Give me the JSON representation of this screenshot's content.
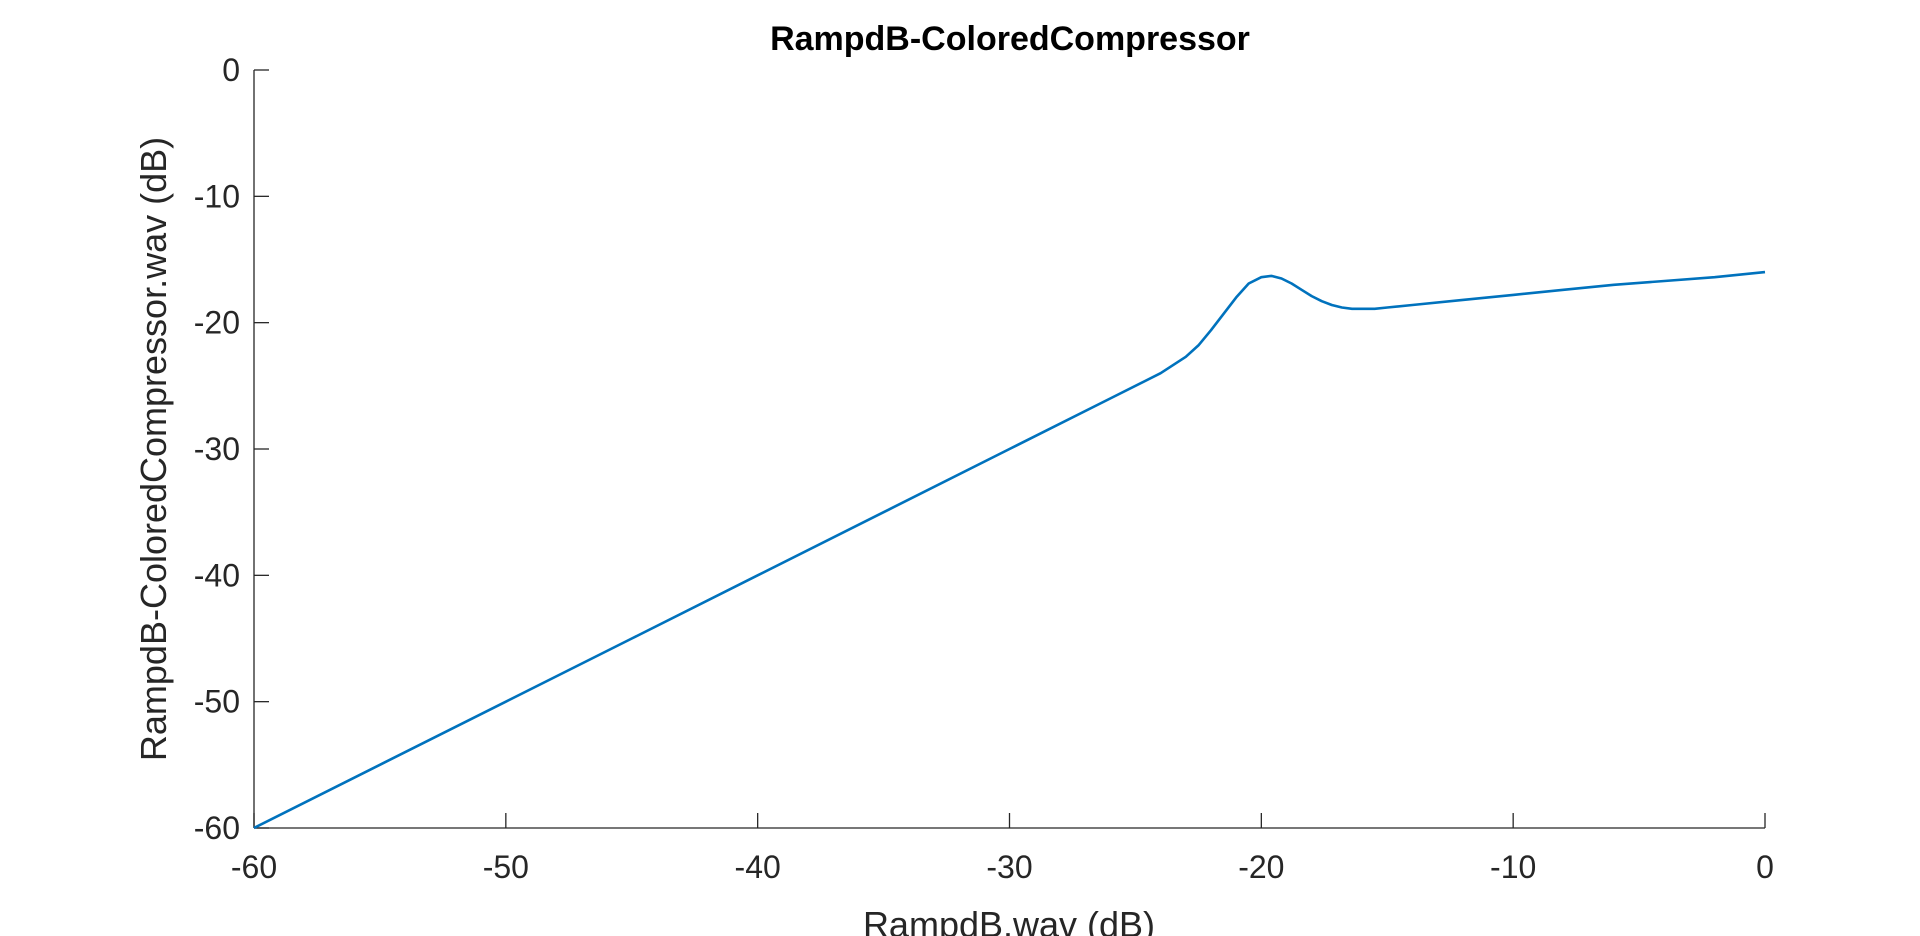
{
  "chart_data": {
    "type": "line",
    "title": "RampdB-ColoredCompressor",
    "xlabel": "RampdB.wav (dB)",
    "ylabel": "RampdB-ColoredCompressor.wav (dB)",
    "xlim": [
      -60,
      0
    ],
    "ylim": [
      -60,
      0
    ],
    "xticks": [
      -60,
      -50,
      -40,
      -30,
      -20,
      -10,
      0
    ],
    "yticks": [
      -60,
      -50,
      -40,
      -30,
      -20,
      -10,
      0
    ],
    "xtick_labels": [
      "-60",
      "-50",
      "-40",
      "-30",
      "-20",
      "-10",
      "0"
    ],
    "ytick_labels": [
      "-60",
      "-50",
      "-40",
      "-30",
      "-20",
      "-10",
      "0"
    ],
    "grid": false,
    "legend": "none",
    "series": [
      {
        "color": "#0072BD",
        "x": [
          -60,
          -55,
          -50,
          -45,
          -40,
          -35,
          -30,
          -26,
          -24,
          -23,
          -22.5,
          -22,
          -21.5,
          -21,
          -20.5,
          -20,
          -19.6,
          -19.2,
          -18.8,
          -18.4,
          -18,
          -17.6,
          -17.2,
          -16.8,
          -16.4,
          -16,
          -15.5,
          -15,
          -14,
          -12,
          -10,
          -8,
          -6,
          -4,
          -2,
          0
        ],
        "y": [
          -60,
          -55,
          -50,
          -45,
          -40,
          -35,
          -30,
          -26,
          -24,
          -22.7,
          -21.8,
          -20.6,
          -19.3,
          -18,
          -16.9,
          -16.4,
          -16.3,
          -16.5,
          -16.9,
          -17.4,
          -17.9,
          -18.3,
          -18.6,
          -18.8,
          -18.9,
          -18.9,
          -18.9,
          -18.8,
          -18.6,
          -18.2,
          -17.8,
          -17.4,
          -17.0,
          -16.7,
          -16.4,
          -16.0
        ]
      }
    ]
  }
}
